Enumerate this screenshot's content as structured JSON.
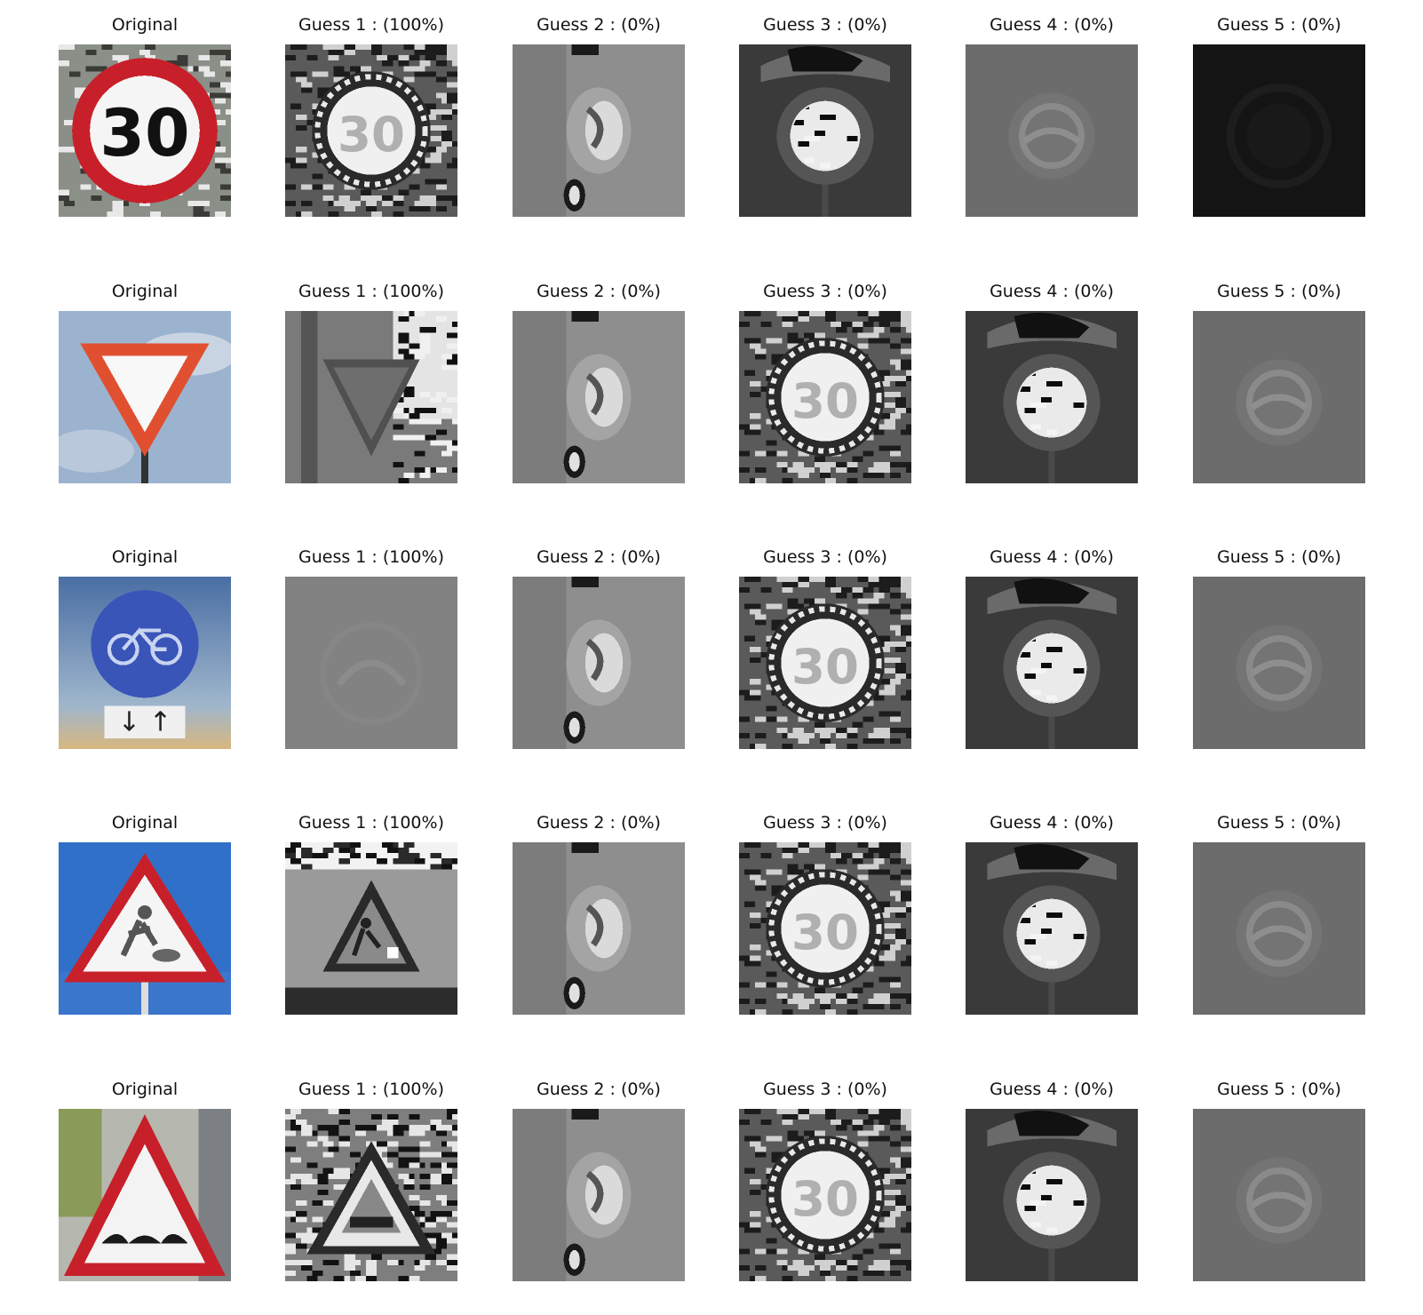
{
  "rows": [
    {
      "row_id": 1,
      "original": {
        "label": "Original",
        "image": "speed-limit-30-sign"
      },
      "guesses": [
        {
          "label": "Guess 1 : (100%)",
          "confidence": 100,
          "image": "speed-limit-30-grayscale"
        },
        {
          "label": "Guess 2 : (0%)",
          "confidence": 0,
          "image": "blurry-sign-grayscale"
        },
        {
          "label": "Guess 3 : (0%)",
          "confidence": 0,
          "image": "dark-round-sign-grayscale"
        },
        {
          "label": "Guess 4 : (0%)",
          "confidence": 0,
          "image": "faint-round-sign-grayscale"
        },
        {
          "label": "Guess 5 : (0%)",
          "confidence": 0,
          "image": "very-dark-sign-grayscale"
        }
      ]
    },
    {
      "row_id": 2,
      "original": {
        "label": "Original",
        "image": "yield-sign"
      },
      "guesses": [
        {
          "label": "Guess 1 : (100%)",
          "confidence": 100,
          "image": "yield-sign-grayscale"
        },
        {
          "label": "Guess 2 : (0%)",
          "confidence": 0,
          "image": "blurry-sign-grayscale"
        },
        {
          "label": "Guess 3 : (0%)",
          "confidence": 0,
          "image": "speed-limit-30-grayscale"
        },
        {
          "label": "Guess 4 : (0%)",
          "confidence": 0,
          "image": "dark-round-sign-grayscale"
        },
        {
          "label": "Guess 5 : (0%)",
          "confidence": 0,
          "image": "faint-round-sign-grayscale"
        }
      ]
    },
    {
      "row_id": 3,
      "original": {
        "label": "Original",
        "image": "bicycle-path-sign"
      },
      "guesses": [
        {
          "label": "Guess 1 : (100%)",
          "confidence": 100,
          "image": "faint-blank-sign-grayscale"
        },
        {
          "label": "Guess 2 : (0%)",
          "confidence": 0,
          "image": "blurry-sign-grayscale"
        },
        {
          "label": "Guess 3 : (0%)",
          "confidence": 0,
          "image": "speed-limit-30-grayscale"
        },
        {
          "label": "Guess 4 : (0%)",
          "confidence": 0,
          "image": "dark-round-sign-grayscale"
        },
        {
          "label": "Guess 5 : (0%)",
          "confidence": 0,
          "image": "faint-round-sign-grayscale"
        }
      ]
    },
    {
      "row_id": 4,
      "original": {
        "label": "Original",
        "image": "road-work-sign"
      },
      "guesses": [
        {
          "label": "Guess 1 : (100%)",
          "confidence": 100,
          "image": "road-work-grayscale"
        },
        {
          "label": "Guess 2 : (0%)",
          "confidence": 0,
          "image": "blurry-sign-grayscale"
        },
        {
          "label": "Guess 3 : (0%)",
          "confidence": 0,
          "image": "speed-limit-30-grayscale"
        },
        {
          "label": "Guess 4 : (0%)",
          "confidence": 0,
          "image": "dark-round-sign-grayscale"
        },
        {
          "label": "Guess 5 : (0%)",
          "confidence": 0,
          "image": "faint-round-sign-grayscale"
        }
      ]
    },
    {
      "row_id": 5,
      "original": {
        "label": "Original",
        "image": "bumpy-road-sign"
      },
      "guesses": [
        {
          "label": "Guess 1 : (100%)",
          "confidence": 100,
          "image": "bumpy-road-grayscale"
        },
        {
          "label": "Guess 2 : (0%)",
          "confidence": 0,
          "image": "blurry-sign-grayscale"
        },
        {
          "label": "Guess 3 : (0%)",
          "confidence": 0,
          "image": "speed-limit-30-grayscale"
        },
        {
          "label": "Guess 4 : (0%)",
          "confidence": 0,
          "image": "dark-round-sign-grayscale"
        },
        {
          "label": "Guess 5 : (0%)",
          "confidence": 0,
          "image": "faint-round-sign-grayscale"
        }
      ]
    }
  ],
  "sign_text": {
    "speed_limit": "30"
  },
  "colors": {
    "sign_red": "#c8202a",
    "sign_blue": "#3a55b8",
    "sky_blue": "#3070c8",
    "sign_white": "#f5f5f5"
  }
}
